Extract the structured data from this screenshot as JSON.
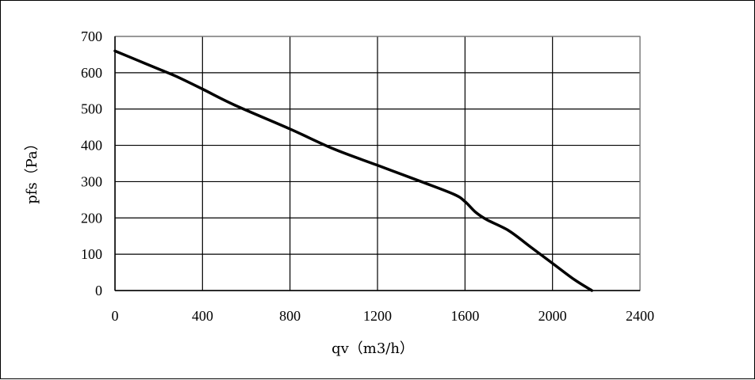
{
  "chart_data": {
    "type": "line",
    "title": "",
    "xlabel": "qv（m3/h）",
    "ylabel": "pfs（Pa）",
    "xlim": [
      0,
      2400
    ],
    "ylim": [
      0,
      700
    ],
    "x_ticks": [
      "0",
      "400",
      "800",
      "1200",
      "1600",
      "2000",
      "2400"
    ],
    "y_ticks": [
      "0",
      "100",
      "200",
      "300",
      "400",
      "500",
      "600",
      "700"
    ],
    "grid": true,
    "legend": "none",
    "line_color": "#000000",
    "series": [
      {
        "x": [
          0,
          100,
          200,
          280,
          400,
          550,
          800,
          1000,
          1200,
          1400,
          1550,
          1600,
          1650,
          1700,
          1800,
          1900,
          2000,
          2100,
          2180
        ],
        "y": [
          660,
          635,
          610,
          590,
          555,
          510,
          445,
          390,
          345,
          300,
          265,
          245,
          215,
          195,
          165,
          120,
          75,
          30,
          0
        ]
      }
    ]
  }
}
